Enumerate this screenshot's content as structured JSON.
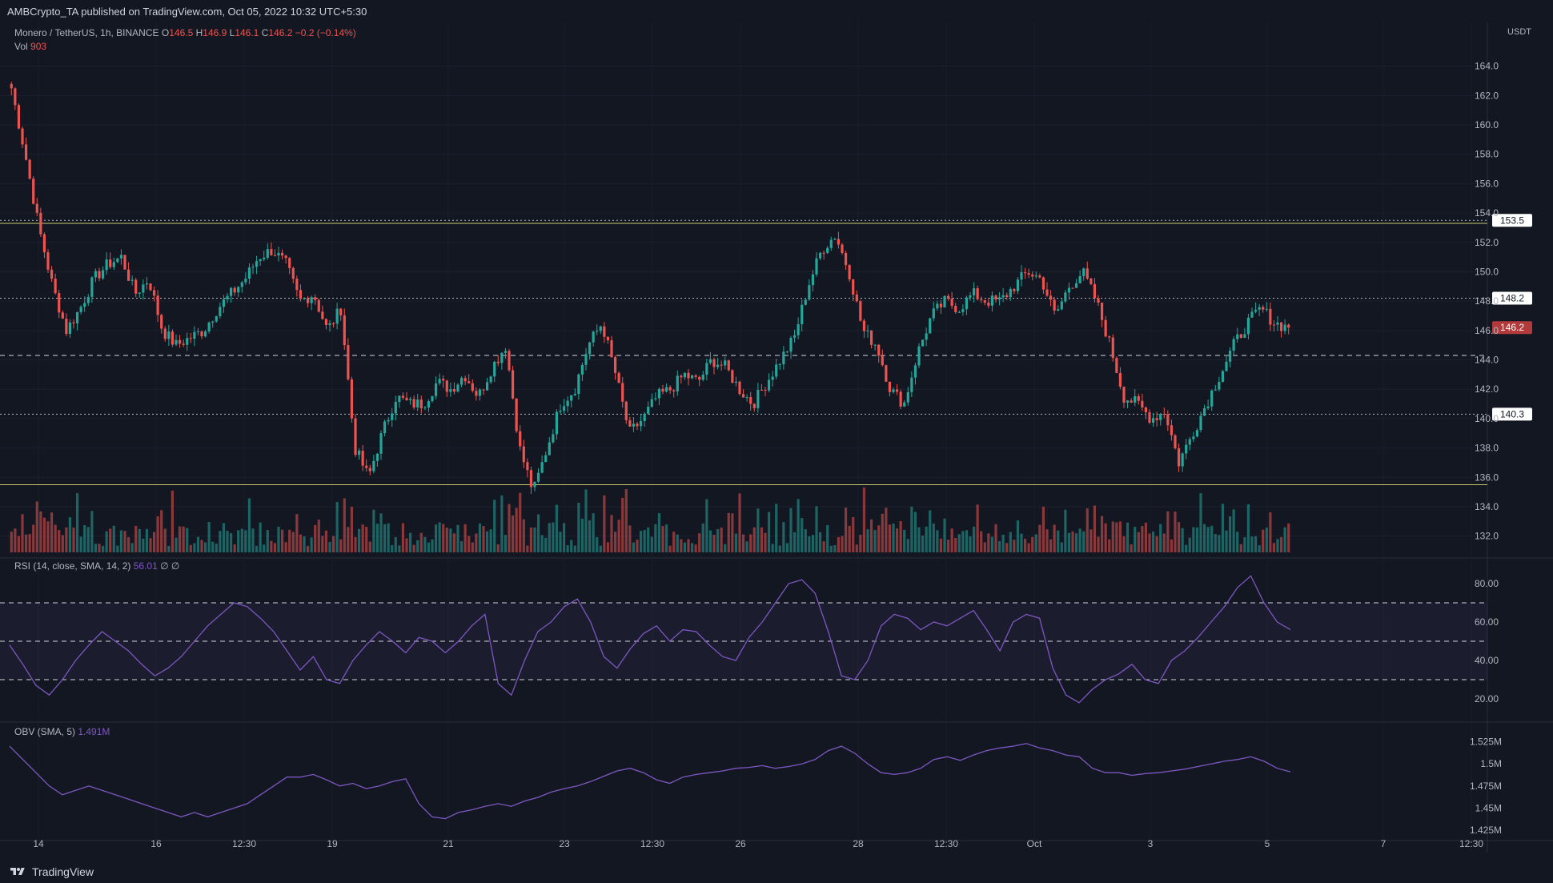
{
  "header": {
    "publish_line": "AMBCrypto_TA published on TradingView.com, Oct 05, 2022 10:32 UTC+5:30"
  },
  "legend": {
    "symbol": "Monero / TetherUS, 1h, BINANCE",
    "open_label": "O",
    "open": "146.5",
    "high_label": "H",
    "high": "146.9",
    "low_label": "L",
    "low": "146.1",
    "close_label": "C",
    "close": "146.2",
    "change": "−0.2 (−0.14%)",
    "vol_label": "Vol",
    "vol": "903",
    "rsi_label": "RSI (14, close, SMA, 14, 2)",
    "rsi_value": "56.01",
    "rsi_extra": "∅ ∅",
    "obv_label": "OBV (SMA, 5)",
    "obv_value": "1.491M"
  },
  "axis_unit": "USDT",
  "branding": "TradingView",
  "icons": [
    "tradingview-logo-icon"
  ],
  "colors": {
    "background": "#131722",
    "up": "#26a69a",
    "down": "#ef5350",
    "rsi_line": "#7e57c2",
    "obv_line": "#7e57c2",
    "support_resistance": "#c9c96b",
    "dotted_levels": "#b2b5be",
    "price_badge": "#b23a3a"
  },
  "chart_data": [
    {
      "type": "candlestick",
      "title": "Monero / TetherUS, 1h, BINANCE",
      "ylabel": "USDT",
      "ylim": [
        131.0,
        166.0
      ],
      "y_ticks": [
        132.0,
        134.0,
        136.0,
        138.0,
        140.0,
        142.0,
        144.0,
        146.0,
        148.0,
        150.0,
        152.0,
        154.0,
        156.0,
        158.0,
        160.0,
        162.0,
        164.0
      ],
      "x_ticks": [
        "14",
        "16",
        "12:30",
        "19",
        "21",
        "23",
        "12:30",
        "26",
        "28",
        "12:30",
        "Oct",
        "3",
        "5",
        "7",
        "12:30"
      ],
      "close_path": [
        [
          "Sep 13",
          162.5
        ],
        [
          "Sep 13 12:00",
          158.0
        ],
        [
          "Sep 13 18:00",
          153.0
        ],
        [
          "Sep 14",
          149.0
        ],
        [
          "Sep 14 06:00",
          146.0
        ],
        [
          "Sep 14 12:00",
          147.5
        ],
        [
          "Sep 14 18:00",
          149.5
        ],
        [
          "Sep 15",
          150.5
        ],
        [
          "Sep 15 06:00",
          151.0
        ],
        [
          "Sep 15 12:00",
          148.5
        ],
        [
          "Sep 15 18:00",
          149.5
        ],
        [
          "Sep 16",
          146.0
        ],
        [
          "Sep 16 06:00",
          145.0
        ],
        [
          "Sep 16 12:00",
          145.5
        ],
        [
          "Sep 16 18:00",
          146.0
        ],
        [
          "Sep 17",
          147.5
        ],
        [
          "Sep 17 06:00",
          148.5
        ],
        [
          "Sep 17 12:00",
          149.5
        ],
        [
          "Sep 17 18:00",
          151.0
        ],
        [
          "Sep 18",
          151.5
        ],
        [
          "Sep 18 06:00",
          150.5
        ],
        [
          "Sep 18 12:00",
          148.0
        ],
        [
          "Sep 18 18:00",
          148.5
        ],
        [
          "Sep 19",
          146.0
        ],
        [
          "Sep 19 03:00",
          147.5
        ],
        [
          "Sep 19 06:00",
          138.0
        ],
        [
          "Sep 19 12:00",
          136.0
        ],
        [
          "Sep 19 18:00",
          139.0
        ],
        [
          "Sep 20",
          141.5
        ],
        [
          "Sep 20 06:00",
          141.0
        ],
        [
          "Sep 20 12:00",
          141.0
        ],
        [
          "Sep 20 18:00",
          142.5
        ],
        [
          "Sep 21",
          142.0
        ],
        [
          "Sep 21 06:00",
          143.0
        ],
        [
          "Sep 21 12:00",
          141.5
        ],
        [
          "Sep 21 18:00",
          143.5
        ],
        [
          "Sep 22",
          145.0
        ],
        [
          "Sep 22 03:00",
          138.0
        ],
        [
          "Sep 22 06:00",
          135.0
        ],
        [
          "Sep 22 12:00",
          138.0
        ],
        [
          "Sep 22 18:00",
          141.0
        ],
        [
          "Sep 23",
          142.0
        ],
        [
          "Sep 23 06:00",
          145.0
        ],
        [
          "Sep 23 09:00",
          146.5
        ],
        [
          "Sep 23 18:00",
          143.0
        ],
        [
          "Sep 24",
          139.0
        ],
        [
          "Sep 24 06:00",
          140.0
        ],
        [
          "Sep 24 12:00",
          141.5
        ],
        [
          "Sep 24 18:00",
          142.0
        ],
        [
          "Sep 25",
          143.0
        ],
        [
          "Sep 25 06:00",
          142.5
        ],
        [
          "Sep 25 12:00",
          144.0
        ],
        [
          "Sep 25 18:00",
          143.5
        ],
        [
          "Sep 26",
          142.0
        ],
        [
          "Sep 26 06:00",
          141.0
        ],
        [
          "Sep 26 12:00",
          142.5
        ],
        [
          "Sep 26 18:00",
          144.0
        ],
        [
          "Sep 27",
          145.5
        ],
        [
          "Sep 27 03:00",
          149.0
        ],
        [
          "Sep 27 06:00",
          151.5
        ],
        [
          "Sep 27 12:00",
          152.5
        ],
        [
          "Sep 27 18:00",
          150.0
        ],
        [
          "Sep 28",
          146.0
        ],
        [
          "Sep 28 06:00",
          145.0
        ],
        [
          "Sep 28 12:00",
          142.0
        ],
        [
          "Sep 28 18:00",
          141.0
        ],
        [
          "Sep 29",
          144.5
        ],
        [
          "Sep 29 06:00",
          147.0
        ],
        [
          "Sep 29 12:00",
          148.0
        ],
        [
          "Sep 29 18:00",
          147.5
        ],
        [
          "Sep 30",
          148.5
        ],
        [
          "Sep 30 06:00",
          148.0
        ],
        [
          "Sep 30 12:00",
          148.0
        ],
        [
          "Sep 30 18:00",
          149.0
        ],
        [
          "Oct 1",
          150.0
        ],
        [
          "Oct 1 06:00",
          149.5
        ],
        [
          "Oct 1 12:00",
          147.0
        ],
        [
          "Oct 1 18:00",
          149.0
        ],
        [
          "Oct 2",
          150.0
        ],
        [
          "Oct 2 03:00",
          148.0
        ],
        [
          "Oct 2 06:00",
          145.0
        ],
        [
          "Oct 2 12:00",
          141.5
        ],
        [
          "Oct 2 18:00",
          141.0
        ],
        [
          "Oct 3",
          140.0
        ],
        [
          "Oct 3 06:00",
          140.5
        ],
        [
          "Oct 3 12:00",
          137.0
        ],
        [
          "Oct 3 18:00",
          139.0
        ],
        [
          "Oct 4",
          141.0
        ],
        [
          "Oct 4 06:00",
          143.0
        ],
        [
          "Oct 4 12:00",
          145.0
        ],
        [
          "Oct 4 18:00",
          146.5
        ],
        [
          "Oct 5",
          147.5
        ],
        [
          "Oct 5 06:00",
          146.5
        ],
        [
          "Oct 5 10:00",
          146.2
        ]
      ],
      "horizontal_levels": [
        {
          "name": "resistance",
          "value": 153.3,
          "style": "solid"
        },
        {
          "name": "level",
          "value": 153.5,
          "style": "dotted",
          "label": "153.5"
        },
        {
          "name": "level",
          "value": 148.2,
          "style": "dotted",
          "label": "148.2"
        },
        {
          "name": "mid-range",
          "value": 144.3,
          "style": "dashed"
        },
        {
          "name": "level",
          "value": 140.3,
          "style": "dotted",
          "label": "140.3"
        },
        {
          "name": "support",
          "value": 135.5,
          "style": "solid"
        }
      ],
      "last_price": {
        "value": 146.2,
        "label": "146.2"
      }
    },
    {
      "type": "bar",
      "title": "Vol",
      "last_value": 903
    },
    {
      "type": "line",
      "title": "RSI (14, close, SMA, 14, 2)",
      "ylim": [
        10,
        90
      ],
      "y_ticks": [
        20.0,
        40.0,
        60.0,
        80.0
      ],
      "bands": [
        70,
        50,
        30
      ],
      "last_value": 56.01,
      "values": [
        48,
        38,
        27,
        22,
        30,
        40,
        48,
        55,
        50,
        45,
        38,
        32,
        36,
        42,
        50,
        58,
        64,
        70,
        68,
        62,
        55,
        45,
        35,
        42,
        30,
        28,
        40,
        48,
        55,
        50,
        44,
        52,
        50,
        44,
        50,
        58,
        64,
        28,
        22,
        40,
        55,
        60,
        68,
        72,
        60,
        42,
        36,
        46,
        54,
        58,
        50,
        56,
        55,
        48,
        42,
        40,
        52,
        60,
        70,
        80,
        82,
        75,
        55,
        32,
        30,
        40,
        58,
        64,
        62,
        56,
        60,
        58,
        62,
        66,
        56,
        45,
        60,
        64,
        62,
        36,
        22,
        18,
        25,
        30,
        33,
        38,
        30,
        28,
        40,
        45,
        52,
        60,
        68,
        78,
        84,
        70,
        60,
        56
      ]
    },
    {
      "type": "line",
      "title": "OBV (SMA, 5)",
      "ylim": [
        1.425,
        1.54
      ],
      "y_ticks": [
        "1.425M",
        "1.45M",
        "1.475M",
        "1.5M",
        "1.525M"
      ],
      "last_value": 1.491,
      "values": [
        1.52,
        1.505,
        1.49,
        1.475,
        1.465,
        1.47,
        1.475,
        1.47,
        1.465,
        1.46,
        1.455,
        1.45,
        1.445,
        1.44,
        1.445,
        1.44,
        1.445,
        1.45,
        1.455,
        1.465,
        1.475,
        1.485,
        1.485,
        1.488,
        1.482,
        1.475,
        1.478,
        1.472,
        1.475,
        1.48,
        1.483,
        1.455,
        1.44,
        1.438,
        1.445,
        1.448,
        1.452,
        1.455,
        1.452,
        1.458,
        1.462,
        1.468,
        1.472,
        1.475,
        1.48,
        1.486,
        1.492,
        1.495,
        1.49,
        1.482,
        1.478,
        1.485,
        1.488,
        1.49,
        1.492,
        1.495,
        1.496,
        1.498,
        1.495,
        1.497,
        1.5,
        1.505,
        1.515,
        1.52,
        1.512,
        1.5,
        1.49,
        1.488,
        1.49,
        1.495,
        1.505,
        1.508,
        1.504,
        1.51,
        1.515,
        1.518,
        1.52,
        1.523,
        1.518,
        1.515,
        1.51,
        1.508,
        1.495,
        1.49,
        1.49,
        1.487,
        1.489,
        1.49,
        1.492,
        1.494,
        1.497,
        1.5,
        1.503,
        1.505,
        1.508,
        1.503,
        1.495,
        1.491
      ]
    }
  ]
}
